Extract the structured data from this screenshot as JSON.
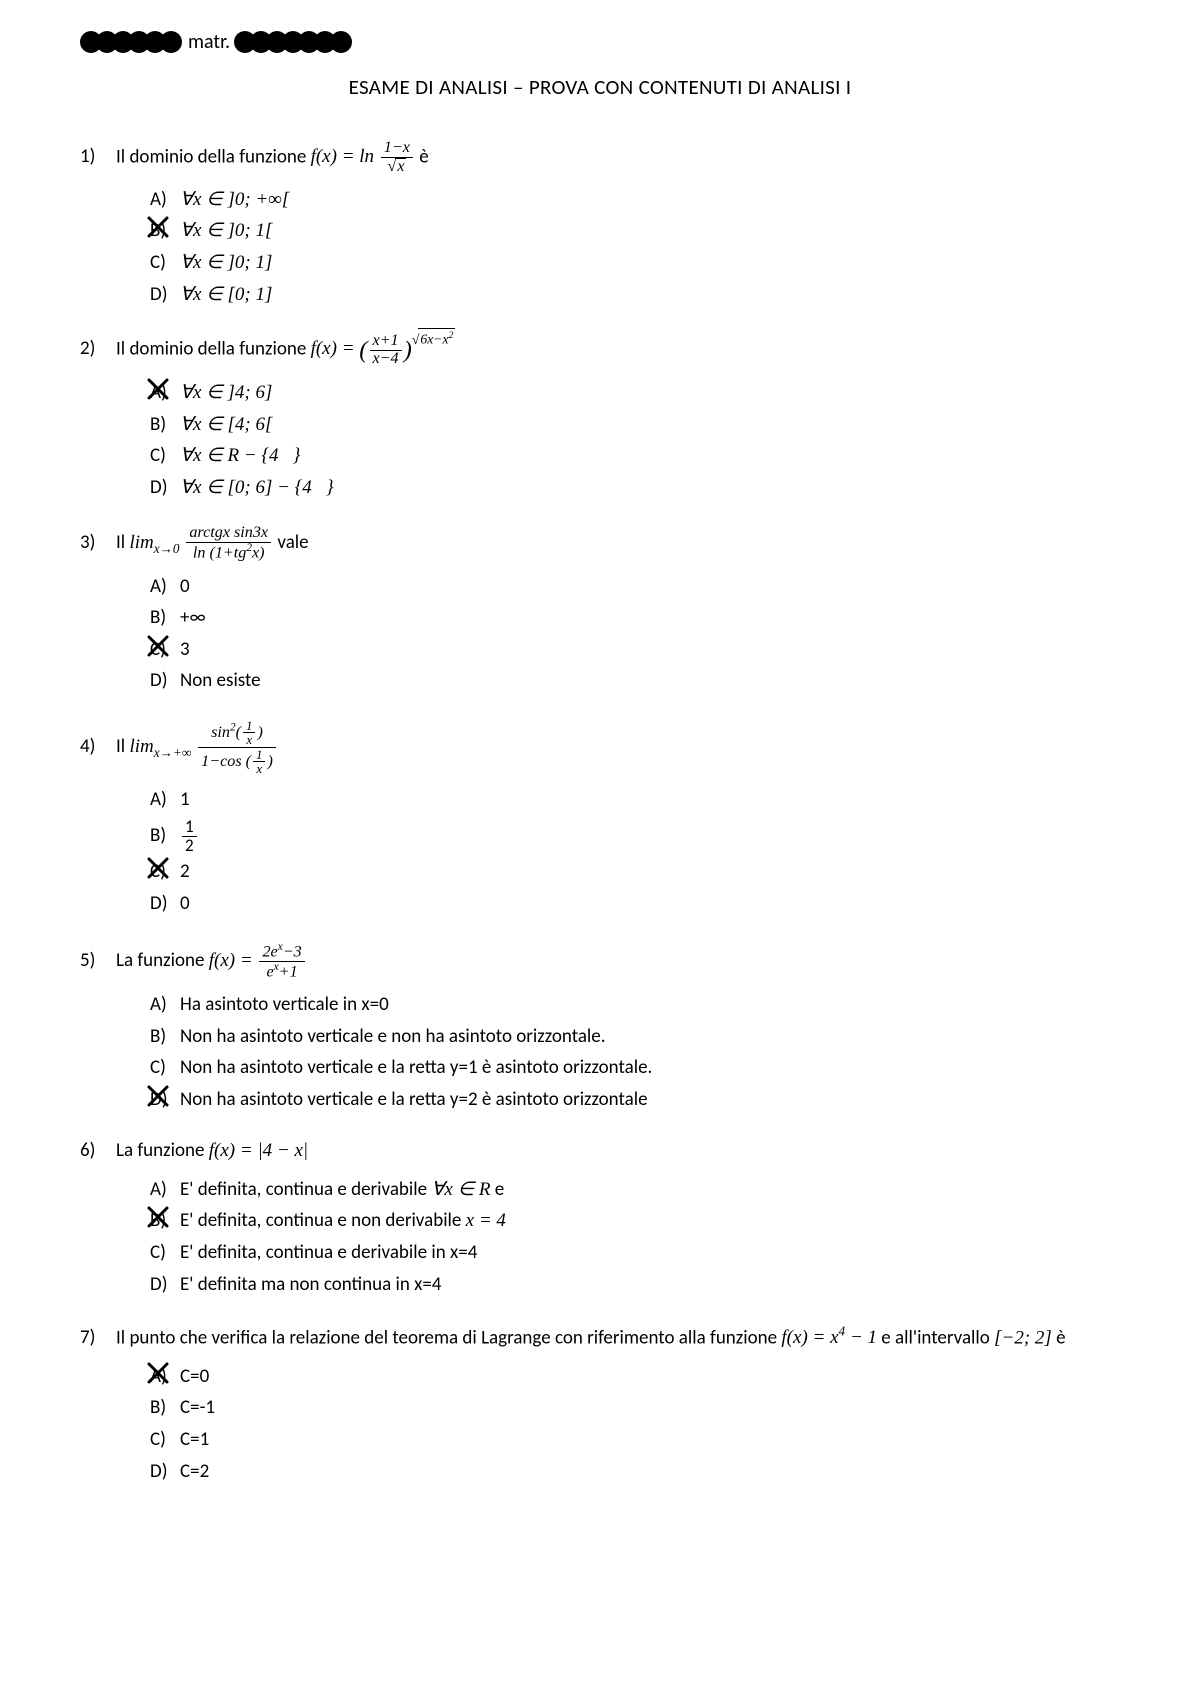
{
  "header": {
    "matr_label": "matr.",
    "redact_left_dots": 6,
    "redact_right_dots": 7
  },
  "title": "ESAME DI ANALISI – PROVA CON CONTENUTI DI ANALISI I",
  "questions": [
    {
      "num": "1)",
      "text_before": "Il dominio della funzione  ",
      "formula_html": "<span class='math'>f(x) = ln <span class='frac'><span class='num'>1−x</span><span class='den'><span class='radsign'></span><span class='sqrt'>x</span></span></span></span>",
      "text_after": " è",
      "options": [
        {
          "label": "A)",
          "html": "<span class='math'>∀x ∈ ]0; +∞[</span>",
          "selected": false
        },
        {
          "label": "B)",
          "html": "<span class='math'>∀x ∈ ]0; 1[</span>",
          "selected": true
        },
        {
          "label": "C)",
          "html": "<span class='math'>∀x ∈ ]0; 1]</span>",
          "selected": false
        },
        {
          "label": "D)",
          "html": "<span class='math'>∀x ∈ [0; 1]</span>",
          "selected": false
        }
      ]
    },
    {
      "num": "2)",
      "text_before": "Il dominio della funzione ",
      "formula_html": "<span class='math'>f(x) = <span class='bigparen'>(</span><span class='frac'><span class='num'>x+1</span><span class='den'>x−4</span></span><span class='bigparen'>)</span><span class='exp-top'><span class='radsign'></span><span class='sqrt'>6x−x<span class='sup'>2</span></span></span></span>",
      "text_after": "",
      "options": [
        {
          "label": "A)",
          "html": "<span class='math'>∀x ∈ ]4; 6]</span>",
          "selected": true
        },
        {
          "label": "B)",
          "html": "<span class='math'>∀x ∈ [4; 6[</span>",
          "selected": false
        },
        {
          "label": "C)",
          "html": "<span class='math'>∀x ∈ R − {4&nbsp;&nbsp;&nbsp;}</span>",
          "selected": false
        },
        {
          "label": "D)",
          "html": "<span class='math'>∀x ∈ [0; 6] − {4&nbsp;&nbsp;&nbsp;}</span>",
          "selected": false
        }
      ]
    },
    {
      "num": "3)",
      "text_before": "Il ",
      "formula_html": "<span class='math'>lim<span class='sub'>x→0</span> <span class='frac'><span class='num'>arctgx sin3x</span><span class='den'>ln (1+tg<span class='sup'>2</span>x)</span></span></span>",
      "text_after": "  vale",
      "options": [
        {
          "label": "A)",
          "html": "0",
          "selected": false
        },
        {
          "label": "B)",
          "html": "+∞",
          "selected": false
        },
        {
          "label": "C)",
          "html": "3",
          "selected": true
        },
        {
          "label": "D)",
          "html": "Non esiste",
          "selected": false
        }
      ]
    },
    {
      "num": "4)",
      "text_before": "Il ",
      "formula_html": "<span class='math'>lim<span class='sub'>x→+∞</span> <span class='frac'><span class='num'>sin<span class='sup'>2</span>(<span class='frac' style='font-size:0.8em'><span class='num'>1</span><span class='den'>x</span></span>)</span><span class='den'>1−cos (<span class='frac' style='font-size:0.8em'><span class='num'>1</span><span class='den'>x</span></span>)</span></span></span>",
      "text_after": "",
      "options": [
        {
          "label": "A)",
          "html": "1",
          "selected": false
        },
        {
          "label": "B)",
          "html": "<span class='frac' style='font-size:0.9em'><span class='num'>1</span><span class='den'>2</span></span>",
          "selected": false
        },
        {
          "label": "C)",
          "html": "2",
          "selected": true
        },
        {
          "label": "D)",
          "html": "0",
          "selected": false
        }
      ]
    },
    {
      "num": "5)",
      "text_before": "La funzione ",
      "formula_html": "<span class='math'>f(x) = <span class='frac'><span class='num'>2e<span class='sup'>x</span>−3</span><span class='den'>e<span class='sup'>x</span>+1</span></span></span>",
      "text_after": "",
      "options": [
        {
          "label": "A)",
          "html": "Ha asintoto verticale in x=0",
          "selected": false
        },
        {
          "label": "B)",
          "html": "Non ha asintoto verticale e non ha asintoto orizzontale.",
          "selected": false
        },
        {
          "label": "C)",
          "html": "Non ha asintoto verticale e la retta y=1 è asintoto orizzontale.",
          "selected": false
        },
        {
          "label": "D)",
          "html": "Non ha asintoto verticale e la retta y=2 è asintoto orizzontale",
          "selected": true
        }
      ]
    },
    {
      "num": "6)",
      "text_before": "La funzione ",
      "formula_html": "<span class='math'>f(x) = |4 − x|</span>",
      "text_after": "",
      "options": [
        {
          "label": "A)",
          "html": "E' definita, continua e derivabile <span class='math'>∀x ∈ R</span> e",
          "selected": false
        },
        {
          "label": "B)",
          "html": "E' definita, continua e non derivabile <span class='math'>x = 4</span>",
          "selected": true
        },
        {
          "label": "C)",
          "html": "E' definita, continua e derivabile in x=4",
          "selected": false
        },
        {
          "label": "D)",
          "html": "E' definita ma non continua in x=4",
          "selected": false
        }
      ]
    },
    {
      "num": "7)",
      "text_before": "Il punto che verifica la relazione del teorema di Lagrange con riferimento alla funzione ",
      "formula_html": "<span class='math'>f(x) = x<span class='sup'>4</span> − 1</span>",
      "text_after": " e all'intervallo <span class='math'>[−2; 2]</span> è",
      "options": [
        {
          "label": "A)",
          "html": "C=0",
          "selected": true
        },
        {
          "label": "B)",
          "html": "C=-1",
          "selected": false
        },
        {
          "label": "C)",
          "html": "C=1",
          "selected": false
        },
        {
          "label": "D)",
          "html": "C=2",
          "selected": false
        }
      ]
    }
  ],
  "style": {
    "x_color": "#000000",
    "x_stroke": 3
  }
}
